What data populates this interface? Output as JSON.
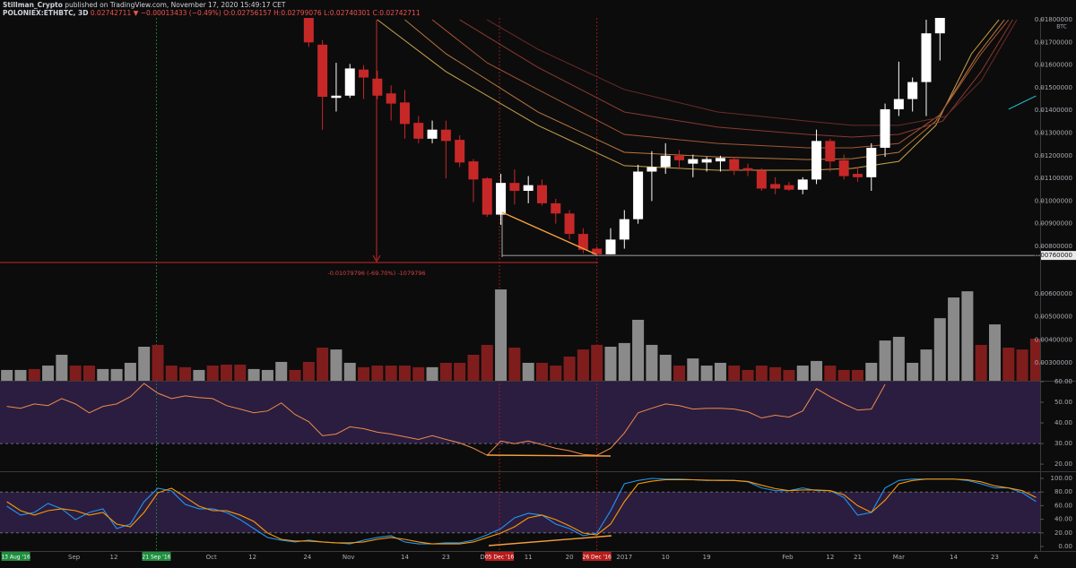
{
  "header": {
    "author": "Stillman_Crypto",
    "published": "published on TradingView.com, November 17, 2020 15:49:17 CET",
    "symbol": "POLONIEX:ETHBTC, 3D",
    "last": "0.02742711",
    "change": "▼ −0.00013433 (−0.49%)",
    "open": "O:0.02756157",
    "high": "H:0.02799076",
    "low": "L:0.02740301",
    "close": "C:0.02742711"
  },
  "chart_data": [
    {
      "type": "candlestick",
      "unit": "BTC",
      "up_color": "#ffffff",
      "down_color": "#c62828",
      "ylim": [
        0.00207,
        0.01808
      ],
      "yticks": [
        {
          "value": 0.008,
          "label": "0.00800000"
        },
        {
          "value": 0.009,
          "label": "0.00900000"
        },
        {
          "value": 0.01,
          "label": "0.01000000"
        },
        {
          "value": 0.011,
          "label": "0.01100000"
        },
        {
          "value": 0.012,
          "label": "0.01200000"
        },
        {
          "value": 0.013,
          "label": "0.01300000"
        },
        {
          "value": 0.014,
          "label": "0.01400000"
        },
        {
          "value": 0.015,
          "label": "0.01500000"
        },
        {
          "value": 0.016,
          "label": "0.01600000"
        },
        {
          "value": 0.017,
          "label": "0.01700000"
        },
        {
          "value": 0.018,
          "label": "0.01800000"
        }
      ],
      "price_marker": {
        "value": 0.0076,
        "label": "0.00760000"
      },
      "annotation": "-0.01079796 (-69.70%) -1079796",
      "x": [
        22,
        23,
        24,
        25,
        26,
        27,
        28,
        29,
        30,
        31,
        32,
        33,
        34,
        35,
        36,
        37,
        38,
        39,
        40,
        41,
        42,
        43,
        44,
        45,
        46,
        47,
        48,
        49,
        50,
        51,
        52,
        53,
        54,
        55,
        56,
        57,
        58,
        59,
        60,
        61,
        62,
        63,
        64,
        65,
        66,
        67,
        68
      ],
      "open": [
        0.0182,
        0.0169,
        0.01455,
        0.01465,
        0.0158,
        0.0154,
        0.01475,
        0.01435,
        0.01345,
        0.01275,
        0.01315,
        0.0127,
        0.01175,
        0.011,
        0.0094,
        0.0108,
        0.01045,
        0.0107,
        0.0099,
        0.00945,
        0.00855,
        0.0079,
        0.00765,
        0.0083,
        0.0092,
        0.0113,
        0.0115,
        0.012,
        0.01165,
        0.0117,
        0.01175,
        0.01185,
        0.01145,
        0.01135,
        0.01075,
        0.0107,
        0.0105,
        0.01095,
        0.01265,
        0.0118,
        0.0112,
        0.01105,
        0.01235,
        0.01405,
        0.0145,
        0.01525,
        0.0174
      ],
      "high": [
        0.0185,
        0.0171,
        0.0161,
        0.01605,
        0.016,
        0.01575,
        0.0151,
        0.0149,
        0.01375,
        0.01355,
        0.01355,
        0.0129,
        0.01185,
        0.01105,
        0.0112,
        0.0114,
        0.0111,
        0.01095,
        0.0101,
        0.0096,
        0.0088,
        0.008,
        0.0088,
        0.0096,
        0.0116,
        0.0122,
        0.01255,
        0.01225,
        0.01205,
        0.01195,
        0.012,
        0.01195,
        0.01165,
        0.01145,
        0.01105,
        0.01085,
        0.01105,
        0.01315,
        0.01275,
        0.01205,
        0.0115,
        0.01255,
        0.0143,
        0.01615,
        0.01545,
        0.018,
        0.019
      ],
      "low": [
        0.0168,
        0.01315,
        0.01395,
        0.01455,
        0.0145,
        0.0145,
        0.01355,
        0.01275,
        0.01255,
        0.01255,
        0.011,
        0.0115,
        0.00995,
        0.0093,
        0.00895,
        0.00985,
        0.0099,
        0.0098,
        0.009,
        0.0083,
        0.0077,
        0.0076,
        0.00765,
        0.0079,
        0.009,
        0.01,
        0.0112,
        0.0114,
        0.01105,
        0.0113,
        0.0113,
        0.01115,
        0.0111,
        0.01045,
        0.0103,
        0.01045,
        0.0103,
        0.01075,
        0.0113,
        0.01095,
        0.01085,
        0.01045,
        0.01195,
        0.01375,
        0.01395,
        0.01375,
        0.0162
      ],
      "close": [
        0.017,
        0.0146,
        0.01465,
        0.01585,
        0.01545,
        0.01465,
        0.0143,
        0.0134,
        0.01275,
        0.01315,
        0.01265,
        0.0117,
        0.01095,
        0.0094,
        0.0108,
        0.01045,
        0.0107,
        0.0099,
        0.00945,
        0.00855,
        0.00785,
        0.00765,
        0.0083,
        0.0092,
        0.0113,
        0.0115,
        0.012,
        0.0118,
        0.01185,
        0.01185,
        0.0119,
        0.01135,
        0.01135,
        0.01055,
        0.01055,
        0.0105,
        0.01095,
        0.01265,
        0.01175,
        0.0111,
        0.01105,
        0.01235,
        0.01405,
        0.0145,
        0.01525,
        0.0174,
        0.0184
      ],
      "series": [
        {
          "color": "#c9a24a",
          "x": [
            27,
            32,
            38.7,
            45,
            51.8,
            58.3,
            61.6,
            65,
            67.7,
            70.3,
            72.3
          ],
          "values": [
            0.018,
            0.01571,
            0.01334,
            0.01156,
            0.01136,
            0.01136,
            0.01144,
            0.01175,
            0.01334,
            0.0165,
            0.018
          ]
        },
        {
          "color": "#b9773f",
          "x": [
            29,
            32,
            38.7,
            45,
            51.8,
            58.3,
            61.6,
            65,
            67.7,
            70.8,
            72.7
          ],
          "values": [
            0.018,
            0.0165,
            0.01393,
            0.01215,
            0.01195,
            0.01183,
            0.01187,
            0.01215,
            0.01353,
            0.0165,
            0.018
          ]
        },
        {
          "color": "#a35535",
          "x": [
            31,
            35,
            38.7,
            45,
            51.8,
            58.3,
            61.6,
            65,
            68,
            71,
            73
          ],
          "values": [
            0.018,
            0.0161,
            0.01492,
            0.01294,
            0.01254,
            0.01235,
            0.01235,
            0.01254,
            0.01381,
            0.0165,
            0.018
          ]
        },
        {
          "color": "#8a3a30",
          "x": [
            33,
            38.7,
            45,
            51.8,
            58.3,
            61.6,
            65,
            68.2,
            71,
            73.3
          ],
          "values": [
            0.018,
            0.0159,
            0.01393,
            0.01326,
            0.01294,
            0.01282,
            0.01294,
            0.01353,
            0.01571,
            0.018
          ]
        },
        {
          "color": "#6e2a2a",
          "x": [
            35,
            38.7,
            45,
            51.8,
            58.3,
            61.6,
            65,
            68.4,
            71,
            73.6
          ],
          "values": [
            0.018,
            0.0167,
            0.01492,
            0.01393,
            0.01353,
            0.01334,
            0.01334,
            0.01373,
            0.01531,
            0.018
          ]
        },
        {
          "color": "#26c6da",
          "x": [
            73,
            75
          ],
          "values": [
            0.01405,
            0.01464
          ]
        }
      ]
    },
    {
      "type": "bar",
      "ylim": [
        0.00222,
        0.0074
      ],
      "yticks": [
        {
          "value": 0.003,
          "label": "0.00300000"
        },
        {
          "value": 0.004,
          "label": "0.00400000"
        },
        {
          "value": 0.005,
          "label": "0.00500000"
        },
        {
          "value": 0.006,
          "label": "0.00600000"
        }
      ],
      "values": [
        0.00269,
        0.00269,
        0.00273,
        0.00288,
        0.00335,
        0.00288,
        0.00288,
        0.00273,
        0.00273,
        0.003,
        0.0037,
        0.00378,
        0.00288,
        0.00281,
        0.00269,
        0.00288,
        0.00292,
        0.00292,
        0.00273,
        0.00269,
        0.00304,
        0.00269,
        0.00304,
        0.00366,
        0.00358,
        0.003,
        0.00281,
        0.00288,
        0.00288,
        0.00288,
        0.00281,
        0.00281,
        0.003,
        0.003,
        0.00335,
        0.00378,
        0.00619,
        0.00366,
        0.003,
        0.003,
        0.00288,
        0.00327,
        0.00358,
        0.00378,
        0.0037,
        0.00386,
        0.00487,
        0.00378,
        0.00335,
        0.00288,
        0.00319,
        0.00288,
        0.003,
        0.00288,
        0.00269,
        0.00288,
        0.00281,
        0.00269,
        0.00288,
        0.00308,
        0.00288,
        0.00269,
        0.00269,
        0.003,
        0.00397,
        0.00413,
        0.003,
        0.00358,
        0.00494,
        0.00584,
        0.00611,
        0.00378,
        0.00467,
        0.00366,
        0.00358,
        0.00405
      ],
      "colors": [
        "#8a8a8a",
        "#8a8a8a",
        "#7f1d1d",
        "#8a8a8a",
        "#8a8a8a",
        "#7f1d1d",
        "#7f1d1d",
        "#8a8a8a",
        "#8a8a8a",
        "#8a8a8a",
        "#8a8a8a",
        "#7f1d1d",
        "#7f1d1d",
        "#7f1d1d",
        "#8a8a8a",
        "#7f1d1d",
        "#7f1d1d",
        "#7f1d1d",
        "#8a8a8a",
        "#8a8a8a",
        "#8a8a8a",
        "#7f1d1d",
        "#7f1d1d",
        "#7f1d1d",
        "#8a8a8a",
        "#8a8a8a",
        "#7f1d1d",
        "#7f1d1d",
        "#7f1d1d",
        "#7f1d1d",
        "#7f1d1d",
        "#8a8a8a",
        "#7f1d1d",
        "#7f1d1d",
        "#7f1d1d",
        "#7f1d1d",
        "#8a8a8a",
        "#7f1d1d",
        "#8a8a8a",
        "#7f1d1d",
        "#7f1d1d",
        "#7f1d1d",
        "#7f1d1d",
        "#7f1d1d",
        "#8a8a8a",
        "#8a8a8a",
        "#8a8a8a",
        "#8a8a8a",
        "#8a8a8a",
        "#7f1d1d",
        "#8a8a8a",
        "#8a8a8a",
        "#8a8a8a",
        "#7f1d1d",
        "#7f1d1d",
        "#7f1d1d",
        "#7f1d1d",
        "#7f1d1d",
        "#8a8a8a",
        "#8a8a8a",
        "#7f1d1d",
        "#7f1d1d",
        "#7f1d1d",
        "#8a8a8a",
        "#8a8a8a",
        "#8a8a8a",
        "#8a8a8a",
        "#8a8a8a",
        "#8a8a8a",
        "#8a8a8a",
        "#8a8a8a",
        "#7f1d1d",
        "#8a8a8a",
        "#7f1d1d",
        "#7f1d1d",
        "#7f1d1d"
      ]
    },
    {
      "type": "line",
      "ylim": [
        17,
        60
      ],
      "band": [
        30,
        70
      ],
      "color": "#f08a4b",
      "yticks": [
        {
          "value": 20,
          "label": "20.00"
        },
        {
          "value": 30,
          "label": "30.00"
        },
        {
          "value": 40,
          "label": "40.00"
        },
        {
          "value": 50,
          "label": "50.00"
        },
        {
          "value": 60,
          "label": "60.00"
        }
      ],
      "values": [
        48.0,
        47.1,
        49.2,
        48.4,
        51.8,
        49.2,
        44.9,
        48.0,
        49.2,
        52.7,
        59.1,
        54.4,
        51.8,
        53.1,
        52.3,
        51.8,
        48.4,
        46.7,
        44.9,
        45.8,
        49.7,
        44.1,
        40.6,
        33.8,
        34.6,
        38.1,
        37.2,
        35.5,
        34.6,
        33.3,
        32.0,
        33.8,
        32.0,
        30.3,
        27.7,
        24.3,
        31.2,
        29.9,
        31.2,
        29.5,
        27.7,
        26.5,
        24.7,
        24.3,
        27.7,
        35.1,
        44.9,
        47.1,
        49.2,
        48.4,
        46.7,
        47.1,
        47.1,
        46.7,
        45.4,
        42.4,
        43.7,
        42.8,
        45.8,
        56.6,
        52.7,
        49.2,
        46.2,
        46.7,
        58.7
      ]
    },
    {
      "type": "line",
      "ylim": [
        -6.6,
        109.2
      ],
      "band": [
        20,
        80
      ],
      "yticks": [
        {
          "value": 0,
          "label": "0.00"
        },
        {
          "value": 20,
          "label": "20.00"
        },
        {
          "value": 40,
          "label": "40.00"
        },
        {
          "value": 60,
          "label": "60.00"
        },
        {
          "value": 80,
          "label": "80.00"
        },
        {
          "value": 100,
          "label": "100.00"
        }
      ],
      "series": [
        {
          "color": "#2196f3",
          "values": [
            59.2,
            46.1,
            50.0,
            63.2,
            55.3,
            39.5,
            50.0,
            55.3,
            26.3,
            32.9,
            65.8,
            85.5,
            81.6,
            61.8,
            55.3,
            55.3,
            50.0,
            39.5,
            26.3,
            13.2,
            9.2,
            6.6,
            9.2,
            6.6,
            5.3,
            3.9,
            9.2,
            13.2,
            15.8,
            6.6,
            3.9,
            3.9,
            5.3,
            5.3,
            9.2,
            17.1,
            26.3,
            42.1,
            48.7,
            46.1,
            32.9,
            26.3,
            15.8,
            19.7,
            52.6,
            92.1,
            97,
            100,
            99,
            99,
            98,
            97,
            97.5,
            97,
            95,
            86,
            82,
            82,
            86,
            82,
            82,
            72,
            46,
            50,
            86,
            97,
            99,
            99,
            99,
            99,
            97,
            92,
            86,
            86,
            79,
            66
          ]
        },
        {
          "color": "#ff9800",
          "values": [
            65.8,
            52.6,
            46.1,
            52.6,
            55.3,
            52.6,
            46.1,
            50.0,
            32.9,
            28.9,
            50.0,
            78.9,
            85.5,
            72.4,
            59.2,
            52.6,
            52.6,
            46.1,
            36.8,
            19.7,
            10.5,
            7.9,
            7.9,
            6.6,
            5.3,
            5.3,
            6.6,
            10.5,
            13.2,
            10.5,
            6.6,
            3.9,
            3.9,
            3.9,
            6.6,
            13.2,
            19.7,
            28.9,
            42.1,
            46.1,
            39.5,
            30.3,
            19.7,
            17.1,
            32.9,
            65.8,
            92.1,
            96,
            98,
            98,
            98,
            97.5,
            97,
            97,
            95.5,
            90,
            85,
            82,
            83,
            83,
            82,
            76,
            60,
            50,
            68,
            92,
            97,
            99,
            99,
            99,
            98,
            95,
            89,
            86,
            82,
            72
          ]
        }
      ],
      "xlim": [
        -0.5,
        75.3
      ],
      "xticks": [
        {
          "value": 0.65,
          "label": "13 Aug '16",
          "highlight": "#1e8e3e"
        },
        {
          "value": 4.9,
          "label": "Sep"
        },
        {
          "value": 7.8,
          "label": "12"
        },
        {
          "value": 10.9,
          "label": "21 Sep '16",
          "highlight": "#1e8e3e",
          "guide": true
        },
        {
          "value": 14.9,
          "label": "Oct"
        },
        {
          "value": 17.9,
          "label": "12"
        },
        {
          "value": 21.9,
          "label": "24"
        },
        {
          "value": 24.9,
          "label": "Nov"
        },
        {
          "value": 29,
          "label": "14"
        },
        {
          "value": 32,
          "label": "23"
        },
        {
          "value": 34.8,
          "label": "De"
        },
        {
          "value": 35.9,
          "label": "05 Dec '16",
          "highlight": "#b71c1c",
          "guide": true
        },
        {
          "value": 38,
          "label": "11"
        },
        {
          "value": 41,
          "label": "20"
        },
        {
          "value": 43,
          "label": "26 Dec '16",
          "highlight": "#b71c1c",
          "guide": true
        },
        {
          "value": 45,
          "label": "2017"
        },
        {
          "value": 48,
          "label": "10"
        },
        {
          "value": 51,
          "label": "19"
        },
        {
          "value": 56.9,
          "label": "Feb"
        },
        {
          "value": 60,
          "label": "12"
        },
        {
          "value": 62,
          "label": "21"
        },
        {
          "value": 65,
          "label": "Mar"
        },
        {
          "value": 69,
          "label": "14"
        },
        {
          "value": 72,
          "label": "23"
        },
        {
          "value": 75,
          "label": "A"
        }
      ]
    }
  ]
}
